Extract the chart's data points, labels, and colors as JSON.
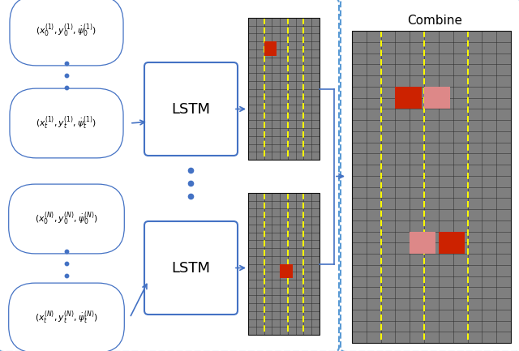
{
  "bg_color": "#ffffff",
  "outer_border_color": "#5b9bd5",
  "lstm_border_color": "#4472c4",
  "arrow_color": "#4472c4",
  "dot_color": "#4472c4",
  "grid_bg": "#7f7f7f",
  "grid_line": "#303030",
  "yellow_line": "#ffff00",
  "red_color": "#cc2200",
  "pink_color": "#dd8888",
  "combine_title": "Combine",
  "lstm_text": "LSTM",
  "figsize": [
    6.4,
    4.33
  ],
  "dpi": 100
}
